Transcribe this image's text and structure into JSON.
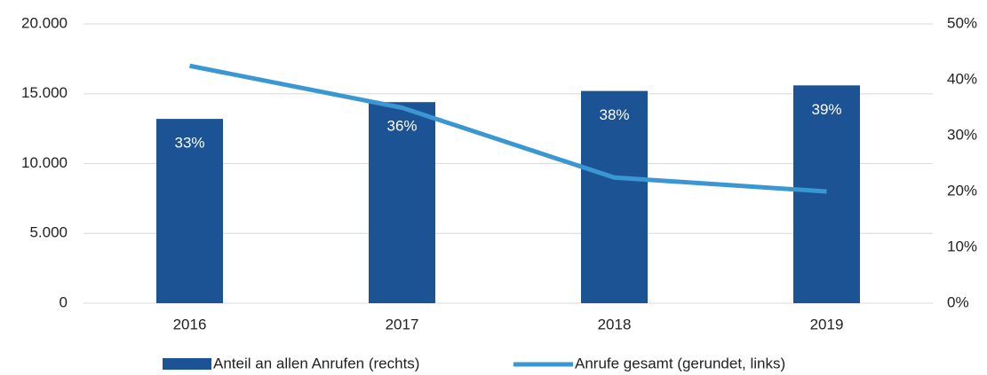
{
  "chart_data": {
    "type": "bar",
    "categories": [
      "2016",
      "2017",
      "2018",
      "2019"
    ],
    "series": [
      {
        "name": "Anteil an allen Anrufen (rechts)",
        "type": "bar",
        "axis": "y2",
        "color": "#1b5394",
        "values": [
          33,
          36,
          38,
          39
        ],
        "value_labels": [
          "33%",
          "36%",
          "38%",
          "39%"
        ]
      },
      {
        "name": "Anrufe gesamt (gerundet, links)",
        "type": "line",
        "axis": "y",
        "color": "#3a97d4",
        "values": [
          17000,
          14000,
          9000,
          8000
        ]
      }
    ],
    "ylim": [
      0,
      20000
    ],
    "yticks": [
      0,
      {
        "value": 5000,
        "label": "5.000"
      },
      {
        "value": 10000,
        "label": "10.000"
      },
      {
        "value": 15000,
        "label": "15.000"
      },
      {
        "value": 20000,
        "label": "20.000"
      }
    ],
    "y2lim": [
      0,
      50
    ],
    "y2ticks": [
      {
        "value": 0,
        "label": "0%"
      },
      {
        "value": 10,
        "label": "10%"
      },
      {
        "value": 20,
        "label": "20%"
      },
      {
        "value": 30,
        "label": "30%"
      },
      {
        "value": 40,
        "label": "40%"
      },
      {
        "value": 50,
        "label": "50%"
      }
    ],
    "grid": true,
    "legend": "bottom"
  }
}
